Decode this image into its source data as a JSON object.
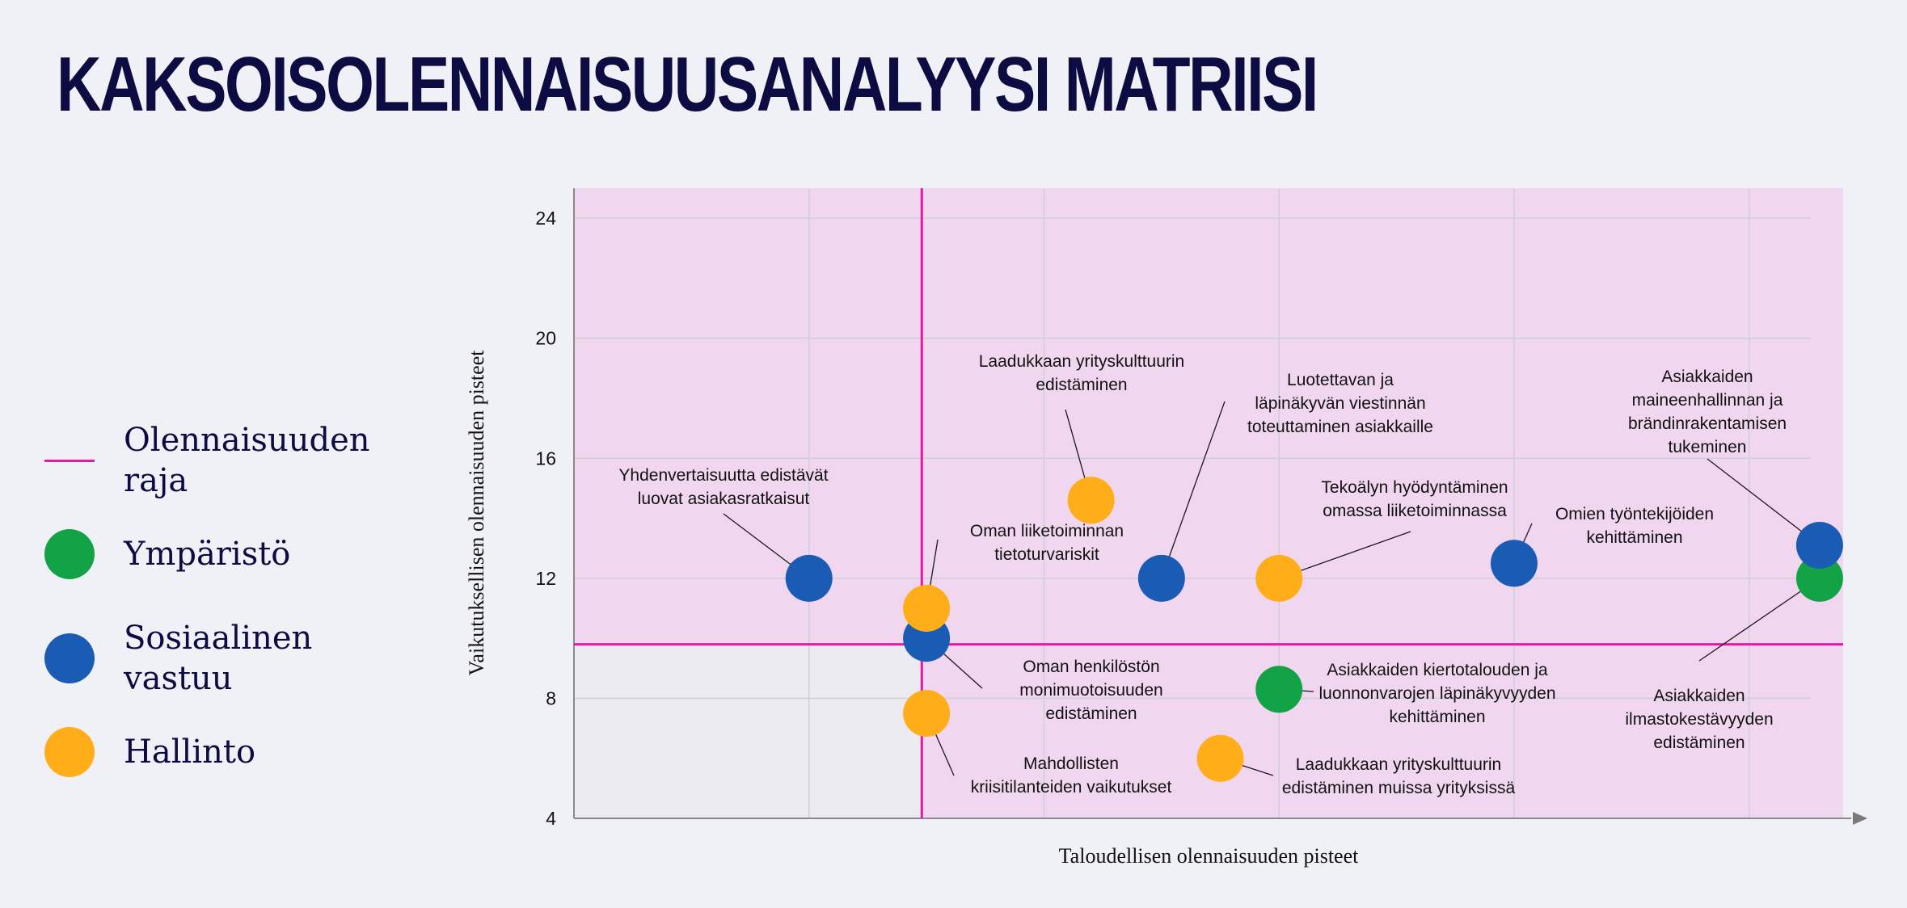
{
  "title": "KAKSOISOLENNAISUUSANALYYSI MATRIISI",
  "colors": {
    "background": "#f0f0f7",
    "title": "#0c0c42",
    "plot_area_unshaded": "#ecebf1",
    "material_zone": "#f1d6ef",
    "materiality_line": "#e51aa3",
    "grid": "#cfcfd8",
    "environment": "#11a346",
    "social": "#1a5cb3",
    "governance": "#ffae1a"
  },
  "legend": [
    {
      "label": "Olennaisuuden raja",
      "lines": [
        "Olennaisuuden",
        "raja"
      ],
      "marker": "line",
      "color": "#e51aa3"
    },
    {
      "label": "Ympäristö",
      "lines": [
        "Ympäristö"
      ],
      "marker": "circle",
      "color": "#11a346"
    },
    {
      "label": "Sosiaalinen vastuu",
      "lines": [
        "Sosiaalinen",
        "vastuu"
      ],
      "marker": "circle",
      "color": "#1a5cb3"
    },
    {
      "label": "Hallinto",
      "lines": [
        "Hallinto"
      ],
      "marker": "circle",
      "color": "#ffae1a"
    }
  ],
  "chart_data": {
    "type": "scatter",
    "title": "",
    "xlabel": "Taloudellisen olennaisuuden pisteet",
    "ylabel": "Vaikutuksellisen olennaisuuden pisteet",
    "xlim": [
      0,
      27
    ],
    "ylim": [
      4,
      25
    ],
    "yticks": [
      4,
      8,
      12,
      16,
      20,
      24
    ],
    "xticks_shown": false,
    "grid": true,
    "materiality_threshold": {
      "x": 7.4,
      "y": 9.8
    },
    "shaded_region": "x ≥ 7.4 or y ≥ 9.8",
    "series": [
      {
        "name": "Ympäristö",
        "color": "#11a346",
        "points": [
          {
            "x": 15.0,
            "y": 8.3,
            "label": "Asiakkaiden kiertotalouden ja luonnonvarojen läpinäkyvyyden kehittäminen"
          },
          {
            "x": 26.5,
            "y": 12.0,
            "label": "Asiakkaiden ilmastokestävyyden edistäminen"
          }
        ]
      },
      {
        "name": "Sosiaalinen vastuu",
        "color": "#1a5cb3",
        "points": [
          {
            "x": 5.0,
            "y": 12.0,
            "label": "Yhdenvertaisuutta edistävät luovat asiakasratkaisut"
          },
          {
            "x": 7.5,
            "y": 10.0,
            "label": "Oman henkilöstön monimuotoisuuden edistäminen"
          },
          {
            "x": 12.5,
            "y": 12.0,
            "label": "Luotettavan ja läpinäkyvän viestinnän toteuttaminen asiakkaille"
          },
          {
            "x": 20.0,
            "y": 12.5,
            "label": "Omien työntekijöiden kehittäminen"
          },
          {
            "x": 26.5,
            "y": 13.1,
            "label": "Asiakkaiden maineenhallinnan ja brändinrakentamisen tukeminen"
          }
        ]
      },
      {
        "name": "Hallinto",
        "color": "#ffae1a",
        "points": [
          {
            "x": 7.5,
            "y": 11.0,
            "label": "Oman liiketoiminnan tietoturvariskit"
          },
          {
            "x": 7.5,
            "y": 7.5,
            "label": "Mahdollisten kriisitilanteiden vaikutukset"
          },
          {
            "x": 11.0,
            "y": 14.6,
            "label": "Laadukkaan yrityskulttuurin edistäminen"
          },
          {
            "x": 15.0,
            "y": 12.0,
            "label": "Tekoälyn hyödyntäminen omassa liiketoiminnassa"
          },
          {
            "x": 13.75,
            "y": 6.0,
            "label": "Laadukkaan yrityskulttuurin edistäminen muissa yrityksissä"
          }
        ]
      }
    ]
  }
}
